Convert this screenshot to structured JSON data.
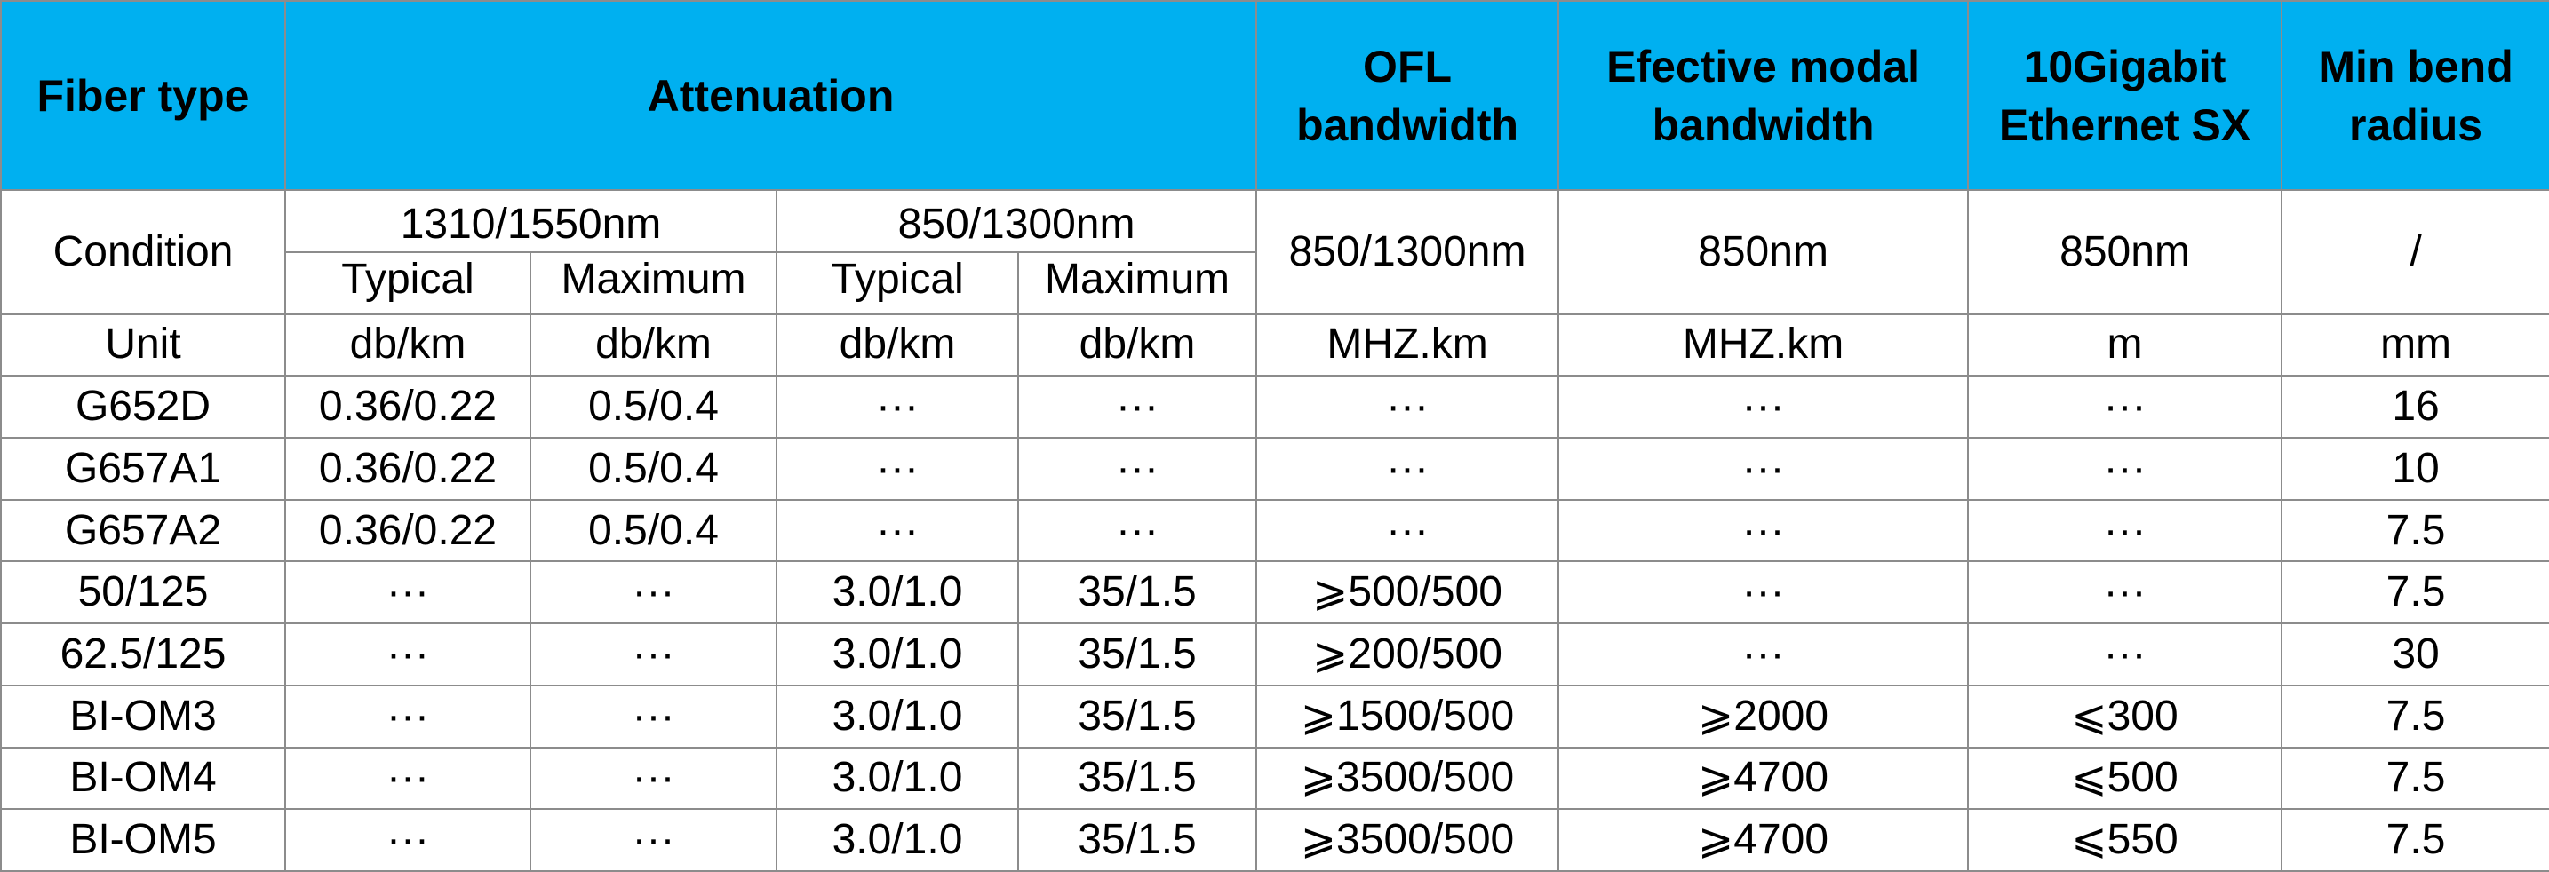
{
  "table": {
    "header": [
      "Fiber type",
      "Attenuation",
      "OFL bandwidth",
      "Efective modal bandwidth",
      "10Gigabit Ethernet SX",
      "Min bend radius"
    ],
    "condition": {
      "label": "Condition",
      "attenuation": [
        {
          "range": "1310/1550nm",
          "typical": "Typical",
          "maximum": "Maximum"
        },
        {
          "range": "850/1300nm",
          "typical": "Typical",
          "maximum": "Maximum"
        }
      ],
      "ofl": "850/1300nm",
      "modal": "850nm",
      "ethernet": "850nm",
      "bend": "/"
    },
    "units": [
      "Unit",
      "db/km",
      "db/km",
      "db/km",
      "db/km",
      "MHZ.km",
      "MHZ.km",
      "m",
      "mm"
    ],
    "rows": [
      [
        "G652D",
        "0.36/0.22",
        "0.5/0.4",
        "···",
        "···",
        "···",
        "···",
        "···",
        "16"
      ],
      [
        "G657A1",
        "0.36/0.22",
        "0.5/0.4",
        "···",
        "···",
        "···",
        "···",
        "···",
        "10"
      ],
      [
        "G657A2",
        "0.36/0.22",
        "0.5/0.4",
        "···",
        "···",
        "···",
        "···",
        "···",
        "7.5"
      ],
      [
        "50/125",
        "···",
        "···",
        "3.0/1.0",
        "35/1.5",
        "⩾500/500",
        "···",
        "···",
        "7.5"
      ],
      [
        "62.5/125",
        "···",
        "···",
        "3.0/1.0",
        "35/1.5",
        "⩾200/500",
        "···",
        "···",
        "30"
      ],
      [
        "BI-OM3",
        "···",
        "···",
        "3.0/1.0",
        "35/1.5",
        "⩾1500/500",
        "⩾2000",
        "⩽300",
        "7.5"
      ],
      [
        "BI-OM4",
        "···",
        "···",
        "3.0/1.0",
        "35/1.5",
        "⩾3500/500",
        "⩾4700",
        "⩽500",
        "7.5"
      ],
      [
        "BI-OM5",
        "···",
        "···",
        "3.0/1.0",
        "35/1.5",
        "⩾3500/500",
        "⩾4700",
        "⩽550",
        "7.5"
      ]
    ]
  }
}
